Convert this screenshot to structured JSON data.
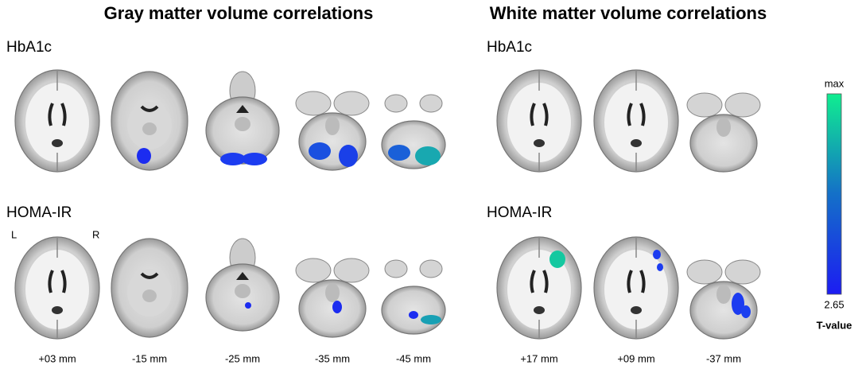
{
  "figure": {
    "panels": [
      {
        "title": "Gray matter volume correlations",
        "rows": [
          "HbA1c",
          "HOMA-IR"
        ],
        "slices": [
          "+03 mm",
          "-15 mm",
          "-25 mm",
          "-35 mm",
          "-45 mm"
        ]
      },
      {
        "title": "White matter volume correlations",
        "rows": [
          "HbA1c",
          "HOMA-IR"
        ],
        "slices": [
          "+17 mm",
          "+09 mm",
          "-37 mm"
        ]
      }
    ],
    "orientation": [
      "L",
      "R"
    ],
    "colorbar": {
      "max_label": "max",
      "min_label": "2.65",
      "title": "T-value"
    }
  }
}
